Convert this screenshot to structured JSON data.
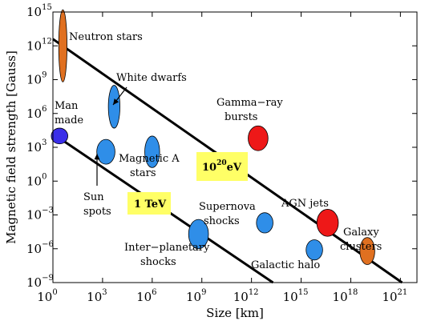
{
  "chart_data": {
    "type": "scatter",
    "title": "",
    "xlabel": "Size [km]",
    "ylabel": "Magnetic field strength [Gauss]",
    "xscale": "log",
    "yscale": "log",
    "xlim_exp": [
      0,
      22
    ],
    "ylim_exp": [
      -9,
      15
    ],
    "grid": false,
    "x_ticks": [
      {
        "base": "10",
        "exp": "0",
        "value": 0
      },
      {
        "base": "10",
        "exp": "3",
        "value": 3
      },
      {
        "base": "10",
        "exp": "6",
        "value": 6
      },
      {
        "base": "10",
        "exp": "9",
        "value": 9
      },
      {
        "base": "10",
        "exp": "12",
        "value": 12
      },
      {
        "base": "10",
        "exp": "15",
        "value": 15
      },
      {
        "base": "10",
        "exp": "18",
        "value": 18
      },
      {
        "base": "10",
        "exp": "21",
        "value": 21
      }
    ],
    "y_ticks": [
      {
        "base": "10",
        "exp": "15",
        "value": 15
      },
      {
        "base": "10",
        "exp": "12",
        "value": 12
      },
      {
        "base": "10",
        "exp": "9",
        "value": 9
      },
      {
        "base": "10",
        "exp": "6",
        "value": 6
      },
      {
        "base": "10",
        "exp": "3",
        "value": 3
      },
      {
        "base": "10",
        "exp": "0",
        "value": 0
      },
      {
        "base": "10",
        "exp": "−3",
        "value": -3
      },
      {
        "base": "10",
        "exp": "−6",
        "value": -6
      },
      {
        "base": "10",
        "exp": "−9",
        "value": -9
      }
    ],
    "objects": [
      {
        "label": "Neutron stars",
        "log_size": 0.6,
        "log_b": 12,
        "rx": 0.25,
        "ry": 3.2,
        "color": "#e07020"
      },
      {
        "label": "Man made",
        "log_size": 0.4,
        "log_b": 4,
        "rx": 0.5,
        "ry": 0.7,
        "color": "#3a2ee8"
      },
      {
        "label": "White dwarfs",
        "log_size": 3.7,
        "log_b": 6.6,
        "rx": 0.35,
        "ry": 1.9,
        "color": "#2f8ee8"
      },
      {
        "label": "Sun spots",
        "log_size": 3.2,
        "log_b": 2.6,
        "rx": 0.55,
        "ry": 1.1,
        "color": "#2f8ee8"
      },
      {
        "label": "Magnetic A stars",
        "log_size": 6.0,
        "log_b": 2.6,
        "rx": 0.45,
        "ry": 1.4,
        "color": "#2f8ee8"
      },
      {
        "label": "Gamma−ray bursts",
        "log_size": 12.4,
        "log_b": 3.8,
        "rx": 0.6,
        "ry": 1.1,
        "color": "#ee1818"
      },
      {
        "label": "Inter−planetary shocks",
        "log_size": 8.8,
        "log_b": -4.7,
        "rx": 0.6,
        "ry": 1.3,
        "color": "#2f8ee8"
      },
      {
        "label": "Supernova shocks",
        "log_size": 12.8,
        "log_b": -3.7,
        "rx": 0.5,
        "ry": 0.9,
        "color": "#2f8ee8"
      },
      {
        "label": "Galactic halo",
        "log_size": 15.8,
        "log_b": -6.1,
        "rx": 0.5,
        "ry": 0.9,
        "color": "#2f8ee8"
      },
      {
        "label": "AGN jets",
        "log_size": 16.6,
        "log_b": -3.7,
        "rx": 0.65,
        "ry": 1.2,
        "color": "#ee1818"
      },
      {
        "label": "Galaxy clusters",
        "log_size": 19.0,
        "log_b": -6.2,
        "rx": 0.45,
        "ry": 1.2,
        "color": "#e07020"
      }
    ],
    "lines": [
      {
        "label": "10",
        "label_exp": "20",
        "label_tail": "eV",
        "start": [
          0,
          12.6
        ],
        "end": [
          21.1,
          -9
        ]
      },
      {
        "label": "1 TeV",
        "start": [
          0,
          4.2
        ],
        "end": [
          13.3,
          -9
        ]
      }
    ]
  }
}
